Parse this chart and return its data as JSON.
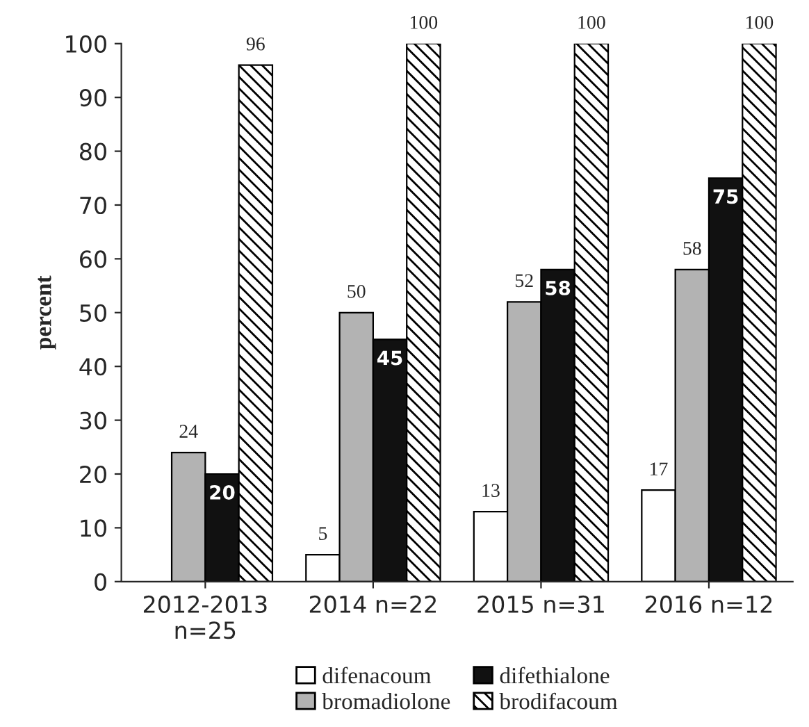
{
  "chart_data": {
    "type": "bar",
    "ylabel": "percent",
    "categories": [
      "2012-2013\nn=25",
      "2014 n=22",
      "2015 n=31",
      "2016 n=12"
    ],
    "series": [
      {
        "name": "difenacoum",
        "color": "#ffffff",
        "values": [
          null,
          5,
          13,
          17
        ]
      },
      {
        "name": "bromadiolone",
        "color": "#b3b3b3",
        "values": [
          24,
          50,
          52,
          58
        ]
      },
      {
        "name": "difethialone",
        "color": "#111111",
        "values": [
          20,
          45,
          58,
          75
        ]
      },
      {
        "name": "brodifacoum",
        "color": "#000000",
        "values": [
          96,
          100,
          100,
          100
        ]
      }
    ],
    "data_labels": true,
    "ylim": [
      0,
      100
    ],
    "yticks": [
      0,
      10,
      20,
      30,
      40,
      50,
      60,
      70,
      80,
      90,
      100
    ],
    "grid": false,
    "legend": "bottom"
  }
}
